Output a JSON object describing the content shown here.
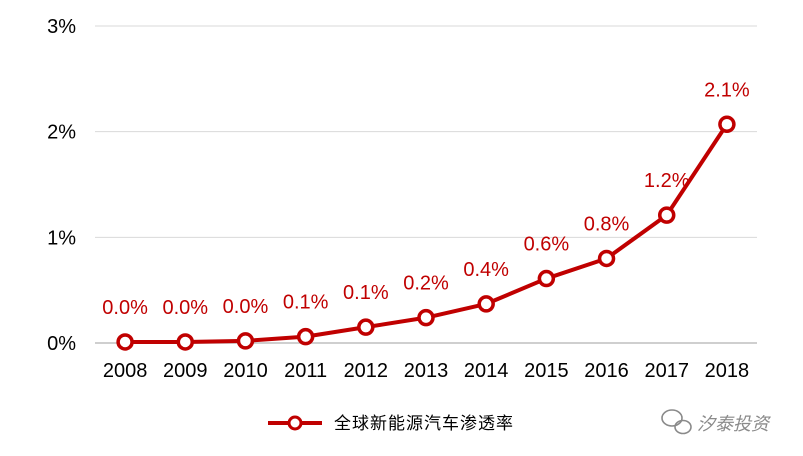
{
  "chart_data": {
    "type": "line",
    "categories": [
      "2008",
      "2009",
      "2010",
      "2011",
      "2012",
      "2013",
      "2014",
      "2015",
      "2016",
      "2017",
      "2018"
    ],
    "series": [
      {
        "name": "全球新能源汽车渗透率",
        "values": [
          0.01,
          0.01,
          0.02,
          0.06,
          0.15,
          0.24,
          0.37,
          0.61,
          0.8,
          1.21,
          2.07
        ],
        "data_labels": [
          "0.0%",
          "0.0%",
          "0.0%",
          "0.1%",
          "0.1%",
          "0.2%",
          "0.4%",
          "0.6%",
          "0.8%",
          "1.2%",
          "2.1%"
        ]
      }
    ],
    "y_ticks": [
      0,
      1,
      2,
      3
    ],
    "y_tick_labels": [
      "0%",
      "1%",
      "2%",
      "3%"
    ],
    "ylim": [
      0,
      3
    ],
    "grid": true,
    "legend_position": "bottom",
    "title": "",
    "xlabel": "",
    "ylabel": ""
  },
  "watermark": {
    "text": "汐泰投资"
  },
  "colors": {
    "series": "#c00000",
    "grid": "#d9d9d9",
    "axis": "#bfbfbf",
    "watermark": "#8a8a8a"
  }
}
